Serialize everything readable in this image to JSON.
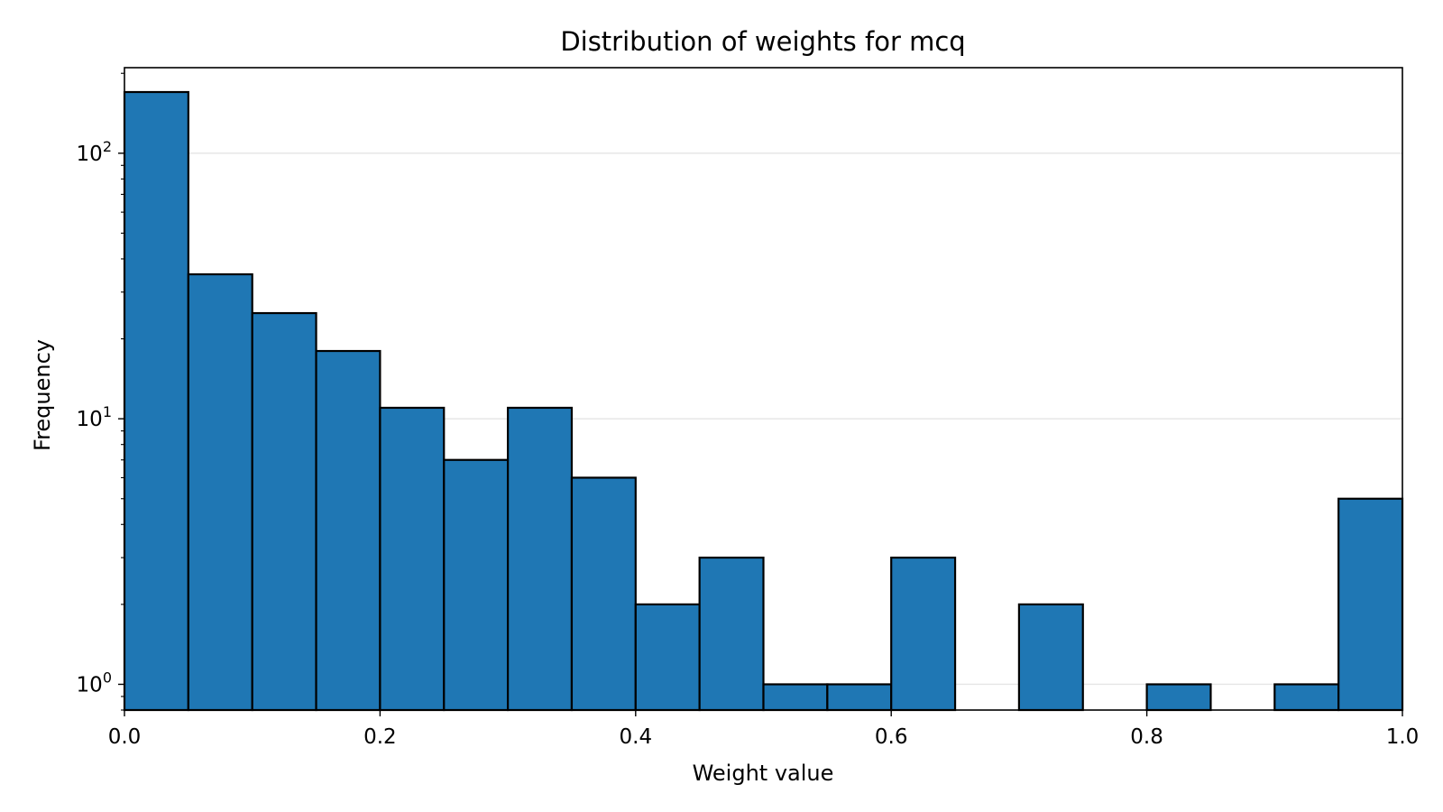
{
  "chart_data": {
    "type": "bar",
    "title": "Distribution of weights for mcq",
    "xlabel": "Weight value",
    "ylabel": "Frequency",
    "xlim": [
      0.0,
      1.0
    ],
    "ylim": [
      0.8,
      210
    ],
    "yscale": "log",
    "grid": "y-major",
    "legend": "none",
    "bin_edges": [
      0.0,
      0.05,
      0.1,
      0.15,
      0.2,
      0.25,
      0.3,
      0.35,
      0.4,
      0.45,
      0.5,
      0.55,
      0.6,
      0.65,
      0.7,
      0.75,
      0.8,
      0.85,
      0.9,
      0.95,
      1.0
    ],
    "values": [
      170,
      35,
      25,
      18,
      11,
      7,
      11,
      6,
      2,
      3,
      1,
      1,
      3,
      0,
      2,
      0,
      1,
      0,
      1,
      5
    ],
    "x_ticks": [
      {
        "value": 0.0,
        "label": "0.0"
      },
      {
        "value": 0.2,
        "label": "0.2"
      },
      {
        "value": 0.4,
        "label": "0.4"
      },
      {
        "value": 0.6,
        "label": "0.6"
      },
      {
        "value": 0.8,
        "label": "0.8"
      },
      {
        "value": 1.0,
        "label": "1.0"
      }
    ],
    "y_ticks": [
      {
        "value": 1,
        "base": "10",
        "exp": "0"
      },
      {
        "value": 10,
        "base": "10",
        "exp": "1"
      },
      {
        "value": 100,
        "base": "10",
        "exp": "2"
      }
    ],
    "colors": {
      "bar_fill": "#1f77b4",
      "bar_edge": "#000000",
      "grid": "#e5e5e5",
      "axes": "#000000"
    }
  }
}
